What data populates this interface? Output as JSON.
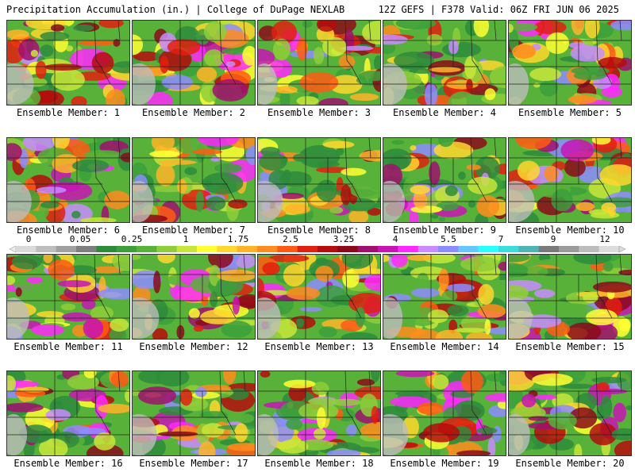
{
  "header": {
    "title": "Precipitation Accumulation (in.) | College of DuPage NEXLAB",
    "run_info": "12Z GEFS | F378 Valid: 06Z FRI JUN 06 2025"
  },
  "members": [
    {
      "label": "Ensemble Member: 1"
    },
    {
      "label": "Ensemble Member: 2"
    },
    {
      "label": "Ensemble Member: 3"
    },
    {
      "label": "Ensemble Member: 4"
    },
    {
      "label": "Ensemble Member: 5"
    },
    {
      "label": "Ensemble Member: 6"
    },
    {
      "label": "Ensemble Member: 7"
    },
    {
      "label": "Ensemble Member: 8"
    },
    {
      "label": "Ensemble Member: 9"
    },
    {
      "label": "Ensemble Member: 10"
    },
    {
      "label": "Ensemble Member: 11"
    },
    {
      "label": "Ensemble Member: 12"
    },
    {
      "label": "Ensemble Member: 13"
    },
    {
      "label": "Ensemble Member: 14"
    },
    {
      "label": "Ensemble Member: 15"
    },
    {
      "label": "Ensemble Member: 16"
    },
    {
      "label": "Ensemble Member: 17"
    },
    {
      "label": "Ensemble Member: 18"
    },
    {
      "label": "Ensemble Member: 19"
    },
    {
      "label": "Ensemble Member: 20"
    }
  ],
  "colorbar": {
    "labels": [
      "0",
      "0.05",
      "0.25",
      "1",
      "1.75",
      "2.5",
      "3.25",
      "4",
      "5.5",
      "7",
      "9",
      "12"
    ],
    "colors": [
      "#d9d9d9",
      "#bdbdbd",
      "#a0a0a0",
      "#7f7f7f",
      "#2e8b3c",
      "#3c9f3c",
      "#58b23a",
      "#8fce3a",
      "#c8e63a",
      "#ffff33",
      "#ffd72e",
      "#ffb428",
      "#ff8c1f",
      "#ff5a14",
      "#e02010",
      "#b40d0d",
      "#8b0a1a",
      "#a0106e",
      "#c814b4",
      "#ff28ff",
      "#c88cff",
      "#8c8cff",
      "#64c8ff",
      "#28ffff",
      "#3cdcdc",
      "#50b4b4",
      "#7a7a7a",
      "#9a9a9a",
      "#bcbcbc",
      "#dcdcdc"
    ]
  }
}
